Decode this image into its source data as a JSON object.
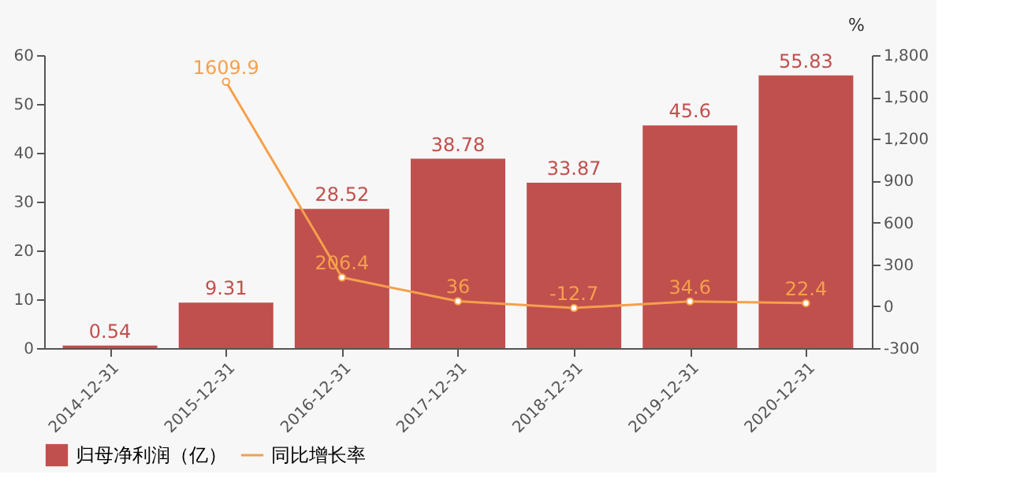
{
  "chart_data": {
    "type": "bar",
    "categories": [
      "2014-12-31",
      "2015-12-31",
      "2016-12-31",
      "2017-12-31",
      "2018-12-31",
      "2019-12-31",
      "2020-12-31"
    ],
    "series": [
      {
        "name": "归母净利润（亿）",
        "color": "#c0504d",
        "values": [
          0.54,
          9.31,
          28.52,
          38.78,
          33.87,
          45.6,
          55.83
        ]
      },
      {
        "name": "同比增长率",
        "type": "line",
        "axis": "y2",
        "color": "#f5a04c",
        "values": [
          null,
          1609.9,
          206.4,
          36,
          -12.7,
          34.6,
          22.4
        ]
      }
    ],
    "ylim": [
      0,
      60
    ],
    "yticks": [
      0,
      10,
      20,
      30,
      40,
      50,
      60
    ],
    "y2lim": [
      -300,
      1800
    ],
    "y2ticks": [
      -300,
      0,
      300,
      600,
      900,
      {
        "value": 1200,
        "label": "1,200"
      },
      {
        "value": 1500,
        "label": "1,500"
      },
      {
        "value": 1800,
        "label": "1,800"
      }
    ],
    "y2label": "%",
    "data_labels": true,
    "legend": "bottom",
    "grid": false,
    "marker": "circle",
    "line_style": "solid"
  }
}
